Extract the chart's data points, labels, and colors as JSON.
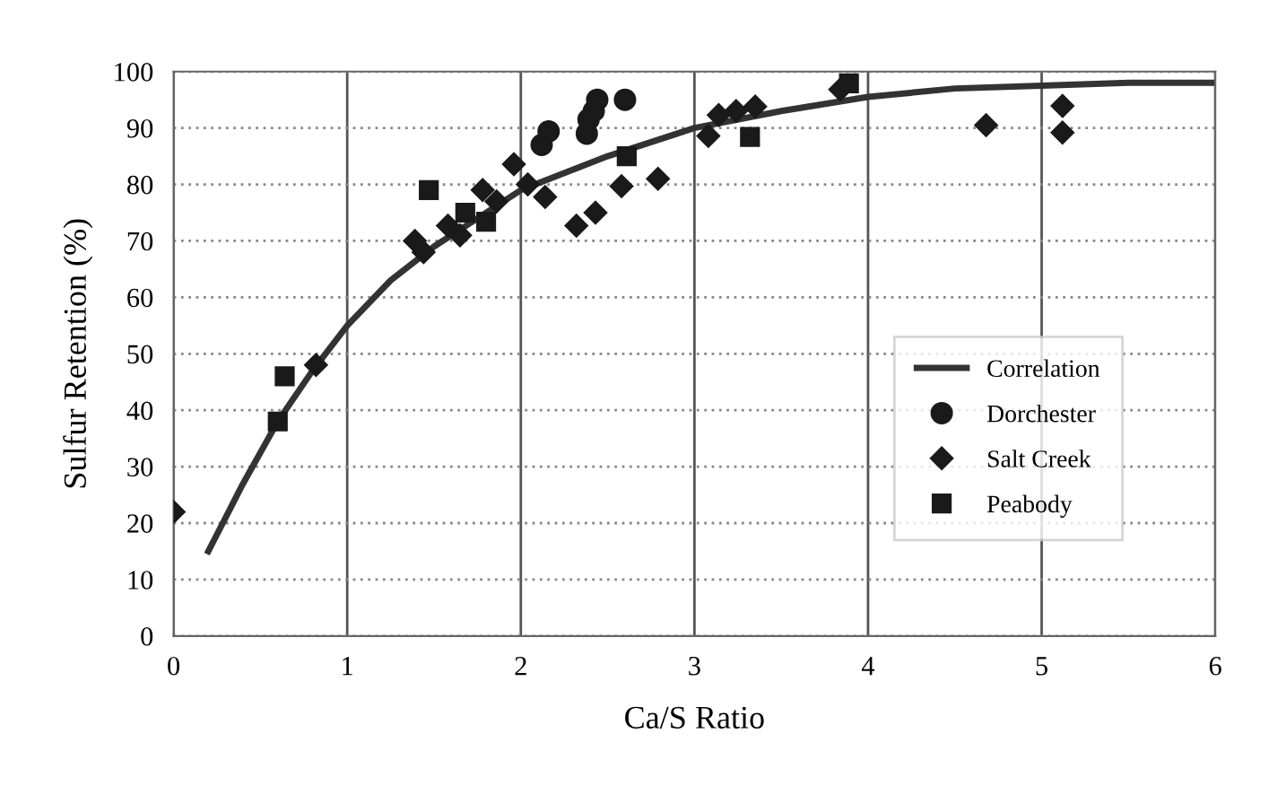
{
  "chart_data": {
    "type": "scatter",
    "xlabel": "Ca/S Ratio",
    "ylabel": "Sulfur Retention (%)",
    "xlim": [
      0,
      6
    ],
    "ylim": [
      0,
      100
    ],
    "xticks": [
      0,
      1,
      2,
      3,
      4,
      5,
      6
    ],
    "yticks": [
      0,
      10,
      20,
      30,
      40,
      50,
      60,
      70,
      80,
      90,
      100
    ],
    "grid": true,
    "legend": "right",
    "series": [
      {
        "name": "Correlation",
        "type": "line",
        "marker": "none",
        "color": "#333333",
        "x": [
          0.2,
          0.4,
          0.6,
          0.8,
          1.0,
          1.25,
          1.5,
          1.75,
          2.0,
          2.5,
          3.0,
          3.5,
          4.0,
          4.5,
          5.0,
          5.5,
          6.0
        ],
        "values": [
          15,
          27,
          38,
          47,
          55,
          63,
          69,
          74,
          79,
          85,
          90,
          93,
          95.5,
          97,
          97.5,
          98,
          98
        ]
      },
      {
        "name": "Dorchester",
        "marker": "circle",
        "color": "#1a1a1a",
        "x": [
          2.12,
          2.16,
          2.38,
          2.39,
          2.42,
          2.44,
          2.6
        ],
        "values": [
          87,
          89.4,
          89,
          91.5,
          93,
          95,
          95
        ]
      },
      {
        "name": "Salt Creek",
        "marker": "diamond",
        "color": "#1a1a1a",
        "x": [
          0.0,
          0.82,
          1.39,
          1.44,
          1.58,
          1.65,
          1.78,
          1.86,
          1.96,
          2.04,
          2.14,
          2.32,
          2.43,
          2.58,
          2.79,
          3.08,
          3.14,
          3.24,
          3.35,
          3.84,
          4.68,
          5.12,
          5.12
        ],
        "values": [
          22,
          48,
          70,
          68,
          72.7,
          71,
          79,
          77,
          83.6,
          80,
          77.8,
          72.7,
          75,
          79.7,
          81,
          88.6,
          92.3,
          93,
          93.8,
          96.8,
          90.5,
          93.9,
          89.2
        ]
      },
      {
        "name": "Peabody",
        "marker": "square",
        "color": "#1a1a1a",
        "x": [
          0.6,
          0.64,
          1.47,
          1.68,
          1.8,
          2.61,
          3.32,
          3.89
        ],
        "values": [
          38,
          46,
          79,
          75,
          73.4,
          85,
          88.4,
          97.9
        ]
      }
    ]
  }
}
